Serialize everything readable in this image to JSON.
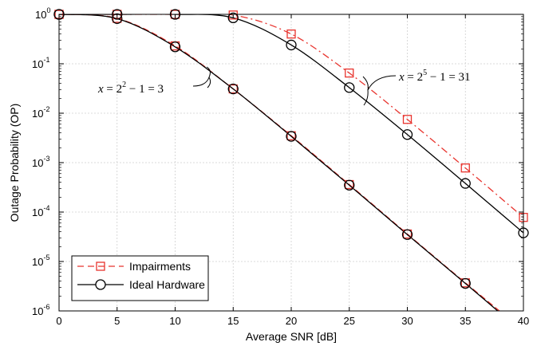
{
  "chart_data": {
    "type": "line",
    "title": "",
    "xlabel": "Average SNR [dB]",
    "ylabel": "Outage Probability (OP)",
    "x_ticks": [
      "0",
      "5",
      "10",
      "15",
      "20",
      "25",
      "30",
      "35",
      "40"
    ],
    "y_tick_bases": [
      "10",
      "10",
      "10",
      "10",
      "10",
      "10",
      "10"
    ],
    "y_tick_exps": [
      "0",
      "-1",
      "-2",
      "-3",
      "-4",
      "-5",
      "-6"
    ],
    "xlim": [
      0,
      40
    ],
    "ylim": [
      1e-06,
      1
    ],
    "yscale": "log",
    "grid": true,
    "legend_position": "bottom-left",
    "legend": {
      "impairments": "Impairments",
      "ideal": "Ideal Hardware"
    },
    "annotations": {
      "low_pre": "x",
      "low_mid": " = 2",
      "low_exp": "2",
      "low_post": " − 1 = 3",
      "high_pre": "x",
      "high_mid": " = 2",
      "high_exp": "5",
      "high_post": " − 1 = 31"
    },
    "colors": {
      "impairments": "#e8342e",
      "ideal": "#000000"
    },
    "series": [
      {
        "name": "Impairments",
        "group": "x=3",
        "x": [
          0,
          5,
          10,
          15,
          20,
          25,
          30,
          35,
          40
        ],
        "y": [
          1.0,
          0.83,
          0.23,
          0.031,
          0.0035,
          0.00036,
          3.6e-05,
          3.7e-06,
          4e-07
        ]
      },
      {
        "name": "Ideal Hardware",
        "group": "x=3",
        "x": [
          0,
          5,
          10,
          15,
          20,
          25,
          30,
          35,
          40
        ],
        "y": [
          1.0,
          0.82,
          0.22,
          0.031,
          0.0034,
          0.00035,
          3.5e-05,
          3.6e-06,
          3.6e-07
        ]
      },
      {
        "name": "Impairments",
        "group": "x=31",
        "x": [
          0,
          5,
          10,
          15,
          20,
          25,
          30,
          35,
          40
        ],
        "y": [
          1.0,
          1.0,
          1.0,
          0.97,
          0.4,
          0.065,
          0.0075,
          0.00078,
          7.8e-05
        ]
      },
      {
        "name": "Ideal Hardware",
        "group": "x=31",
        "x": [
          0,
          5,
          10,
          15,
          20,
          25,
          30,
          35,
          40
        ],
        "y": [
          1.0,
          1.0,
          1.0,
          0.85,
          0.24,
          0.033,
          0.0037,
          0.00038,
          3.8e-05
        ]
      }
    ]
  }
}
